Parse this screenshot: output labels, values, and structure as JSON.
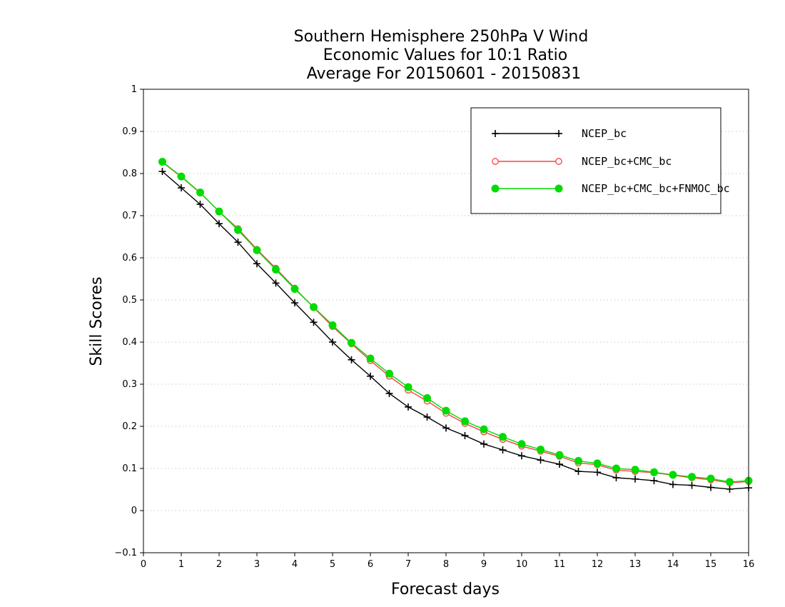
{
  "chart_data": {
    "type": "line",
    "title": [
      "Southern Hemisphere 250hPa V Wind",
      "Economic Values for 10:1 Ratio",
      "Average For 20150601 - 20150831"
    ],
    "xlabel": "Forecast days",
    "ylabel": "Skill Scores",
    "xlim": [
      0,
      16
    ],
    "ylim": [
      -0.1,
      1
    ],
    "x_ticks": [
      0,
      1,
      2,
      3,
      4,
      5,
      6,
      7,
      8,
      9,
      10,
      11,
      12,
      13,
      14,
      15,
      16
    ],
    "x_tick_labels": [
      "0",
      "1",
      "2",
      "3",
      "4",
      "5",
      "6",
      "7",
      "8",
      "9",
      "10",
      "11",
      "12",
      "13",
      "14",
      "15",
      "16"
    ],
    "y_ticks": [
      -0.1,
      0,
      0.1,
      0.2,
      0.3,
      0.4,
      0.5,
      0.6,
      0.7,
      0.8,
      0.9,
      1
    ],
    "y_tick_labels": [
      "−0.1",
      "0",
      "0.1",
      "0.2",
      "0.3",
      "0.4",
      "0.5",
      "0.6",
      "0.7",
      "0.8",
      "0.9",
      "1"
    ],
    "grid": "horizontal dotted",
    "legend_position": "top-right",
    "x": [
      0.5,
      1,
      1.5,
      2,
      2.5,
      3,
      3.5,
      4,
      4.5,
      5,
      5.5,
      6,
      6.5,
      7,
      7.5,
      8,
      8.5,
      9,
      9.5,
      10,
      10.5,
      11,
      11.5,
      12,
      12.5,
      13,
      13.5,
      14,
      14.5,
      15,
      15.5,
      16
    ],
    "series": [
      {
        "name": "NCEP_bc",
        "color": "#000000",
        "marker": "plus",
        "values": [
          0.805,
          0.766,
          0.727,
          0.681,
          0.637,
          0.586,
          0.54,
          0.493,
          0.447,
          0.4,
          0.358,
          0.319,
          0.278,
          0.246,
          0.222,
          0.196,
          0.178,
          0.158,
          0.144,
          0.13,
          0.12,
          0.11,
          0.093,
          0.091,
          0.078,
          0.075,
          0.071,
          0.062,
          0.06,
          0.055,
          0.051,
          0.054
        ]
      },
      {
        "name": "NCEP_bc+CMC_bc",
        "color": "#ff4040",
        "marker": "open-circle",
        "values": [
          0.827,
          0.792,
          0.754,
          0.71,
          0.669,
          0.62,
          0.575,
          0.528,
          0.482,
          0.437,
          0.396,
          0.356,
          0.319,
          0.286,
          0.26,
          0.231,
          0.207,
          0.187,
          0.169,
          0.153,
          0.141,
          0.129,
          0.113,
          0.109,
          0.096,
          0.093,
          0.09,
          0.084,
          0.078,
          0.073,
          0.066,
          0.069
        ]
      },
      {
        "name": "NCEP_bc+CMC_bc+FNMOC_bc",
        "color": "#00dc00",
        "marker": "filled-circle",
        "values": [
          0.828,
          0.793,
          0.755,
          0.71,
          0.666,
          0.618,
          0.572,
          0.526,
          0.483,
          0.44,
          0.398,
          0.361,
          0.325,
          0.293,
          0.267,
          0.237,
          0.212,
          0.193,
          0.175,
          0.158,
          0.145,
          0.132,
          0.118,
          0.112,
          0.1,
          0.097,
          0.091,
          0.085,
          0.08,
          0.076,
          0.068,
          0.071
        ]
      }
    ]
  }
}
